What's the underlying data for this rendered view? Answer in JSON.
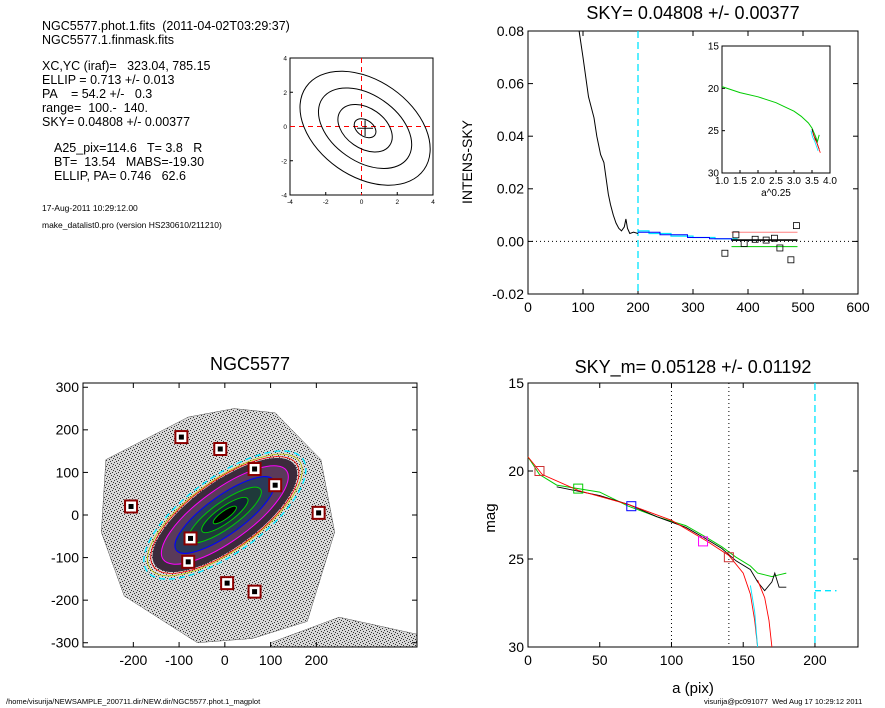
{
  "header": {
    "lines": [
      "NGC5577.phot.1.fits  (2011-04-02T03:29:37)",
      "NGC5577.1.finmask.fits"
    ],
    "params": [
      "XC,YC (iraf)=   323.04, 785.15",
      "ELLIP = 0.713 +/- 0.013",
      "PA    = 54.2 +/-   0.3",
      "range=  100.-  140.",
      "SKY= 0.04808 +/- 0.00377"
    ],
    "results": [
      "A25_pix=114.6   T= 3.8   R",
      "BT=  13.54   MABS=-19.30",
      "ELLIP, PA= 0.746   62.6"
    ],
    "date": "17-Aug-2011 10:29:12.00",
    "program": "make_datalist0.pro (version HS230610/211210)"
  },
  "footer": {
    "left": "/home/visurija/NEWSAMPLE_200711.dir/NEW.dir/NGC5577.phot.1_magplot",
    "right": "visurija@pc091077  Wed Aug 17 10:29:12 2011"
  },
  "colors": {
    "cyan": "#00e5ff",
    "red": "#ff0000",
    "green": "#00cc00",
    "blue": "#0000ff",
    "magenta": "#ff00ff",
    "dark_red": "#8b0000"
  },
  "chart_data": [
    {
      "type": "line",
      "name": "contour-plot",
      "xlim": [
        -4,
        4
      ],
      "ylim": [
        -4,
        4
      ],
      "x_ticks": [
        "-4",
        "-2",
        "0",
        "2",
        "4"
      ],
      "y_ticks": [
        "-4",
        "-2",
        "0",
        "2",
        "4"
      ]
    },
    {
      "type": "line",
      "name": "sky-profile",
      "title": "SKY= 0.04808 +/- 0.00377",
      "ylabel": "INTENS-SKY",
      "xlim": [
        0,
        600
      ],
      "ylim": [
        -0.02,
        0.08
      ],
      "x_ticks": [
        "0",
        "100",
        "200",
        "300",
        "400",
        "500",
        "600"
      ],
      "y_ticks": [
        "-0.02",
        "0.00",
        "0.02",
        "0.04",
        "0.06",
        "0.08"
      ],
      "profile": [
        [
          93,
          0.08
        ],
        [
          100,
          0.07
        ],
        [
          110,
          0.055
        ],
        [
          120,
          0.047
        ],
        [
          125,
          0.04
        ],
        [
          132,
          0.033
        ],
        [
          138,
          0.03
        ],
        [
          142,
          0.024
        ],
        [
          146,
          0.018
        ],
        [
          150,
          0.014
        ],
        [
          155,
          0.01
        ],
        [
          160,
          0.007
        ],
        [
          165,
          0.005
        ],
        [
          170,
          0.004
        ],
        [
          175,
          0.0055
        ],
        [
          178,
          0.0085
        ],
        [
          181,
          0.005
        ],
        [
          185,
          0.003
        ],
        [
          192,
          0.0035
        ],
        [
          200,
          0.003
        ]
      ],
      "cyan_line": [
        [
          200,
          0.004
        ],
        [
          220,
          0.004
        ],
        [
          220,
          0.003
        ],
        [
          260,
          0.003
        ],
        [
          260,
          0.002
        ],
        [
          300,
          0.002
        ],
        [
          300,
          0.0015
        ],
        [
          340,
          0.0015
        ],
        [
          340,
          0.001
        ],
        [
          380,
          0.001
        ],
        [
          380,
          0.0005
        ],
        [
          420,
          0.0005
        ]
      ],
      "blue_line": [
        [
          200,
          0.0035
        ],
        [
          240,
          0.0035
        ],
        [
          240,
          0.0025
        ],
        [
          290,
          0.0025
        ],
        [
          290,
          0.0015
        ],
        [
          330,
          0.0015
        ],
        [
          330,
          0.001
        ],
        [
          370,
          0.001
        ],
        [
          370,
          0.0005
        ],
        [
          410,
          0.0005
        ]
      ],
      "sky_segments": [
        {
          "color": "#ff8080",
          "x0": 370,
          "x1": 490,
          "y": 0.0035
        },
        {
          "color": "#000000",
          "x0": 370,
          "x1": 490,
          "y": 0.0005
        },
        {
          "color": "#00cc00",
          "x0": 370,
          "x1": 490,
          "y": -0.002
        }
      ],
      "squares": [
        [
          358,
          -0.0045
        ],
        [
          378,
          0.0025
        ],
        [
          393,
          -0.0008
        ],
        [
          413,
          0.0008
        ],
        [
          433,
          0.0005
        ],
        [
          448,
          0.0012
        ],
        [
          458,
          -0.0025
        ],
        [
          478,
          -0.007
        ],
        [
          488,
          0.006
        ]
      ],
      "vline_x": 200,
      "inset": {
        "xlabel": "a^0.25",
        "xlim": [
          1.0,
          4.0
        ],
        "ylim": [
          15,
          30
        ],
        "x_ticks": [
          "1.0",
          "1.5",
          "2.0",
          "2.5",
          "3.0",
          "3.5",
          "4.0"
        ],
        "y_ticks": [
          "15",
          "20",
          "25",
          "30"
        ],
        "green": [
          [
            1.0,
            19.8
          ],
          [
            1.5,
            20.5
          ],
          [
            2.0,
            21.0
          ],
          [
            2.5,
            21.7
          ],
          [
            2.8,
            22.3
          ],
          [
            3.0,
            22.7
          ],
          [
            3.2,
            23.3
          ],
          [
            3.4,
            24.1
          ],
          [
            3.5,
            24.7
          ],
          [
            3.6,
            25.7
          ],
          [
            3.65,
            26.3
          ],
          [
            3.7,
            25.5
          ]
        ],
        "tail": [
          [
            3.5,
            24.8
          ],
          [
            3.55,
            25.6
          ],
          [
            3.6,
            26.0
          ],
          [
            3.65,
            26.6
          ],
          [
            3.7,
            27.2
          ]
        ]
      }
    },
    {
      "type": "scatter",
      "name": "galaxy-image",
      "title": "NGC5577",
      "xlim": [
        -310,
        420
      ],
      "ylim": [
        -310,
        310
      ],
      "x_ticks": [
        "-200",
        "-100",
        "0",
        "100",
        "200"
      ],
      "y_ticks": [
        "-300",
        "-200",
        "-100",
        "0",
        "100",
        "200",
        "300"
      ],
      "mask_squares": [
        [
          -95,
          183
        ],
        [
          -10,
          155
        ],
        [
          65,
          108
        ],
        [
          110,
          70
        ],
        [
          -205,
          20
        ],
        [
          205,
          5
        ],
        [
          -75,
          -55
        ],
        [
          -80,
          -110
        ],
        [
          5,
          -160
        ],
        [
          65,
          -180
        ]
      ],
      "ellipse_center": [
        0,
        0
      ],
      "ellipse_pa_deg": 54.2
    },
    {
      "type": "line",
      "name": "surface-brightness",
      "title": "SKY_m=  0.05128 +/- 0.01192",
      "xlabel": "a (pix)",
      "ylabel": "mag",
      "xlim": [
        0,
        230
      ],
      "ylim": [
        15,
        30
      ],
      "x_ticks": [
        "0",
        "50",
        "100",
        "150",
        "200"
      ],
      "y_ticks": [
        "15",
        "20",
        "25",
        "30"
      ],
      "vlines_dotted": [
        100,
        140
      ],
      "vline_cyan": 200,
      "sky_level_cyan": [
        [
          200,
          26.8
        ],
        [
          215,
          26.8
        ]
      ],
      "green": [
        [
          0,
          19.2
        ],
        [
          8,
          20.2
        ],
        [
          20,
          20.8
        ],
        [
          35,
          21.0
        ],
        [
          50,
          21.2
        ],
        [
          70,
          22.0
        ],
        [
          90,
          22.6
        ],
        [
          110,
          23.1
        ],
        [
          125,
          23.8
        ],
        [
          135,
          24.3
        ],
        [
          145,
          24.9
        ],
        [
          155,
          25.4
        ],
        [
          160,
          25.8
        ],
        [
          165,
          25.9
        ],
        [
          170,
          26.0
        ],
        [
          175,
          25.9
        ],
        [
          180,
          25.8
        ]
      ],
      "black": [
        [
          20,
          20.9
        ],
        [
          50,
          21.4
        ],
        [
          70,
          21.9
        ],
        [
          90,
          22.6
        ],
        [
          110,
          23.2
        ],
        [
          125,
          23.9
        ],
        [
          135,
          24.4
        ],
        [
          145,
          25.1
        ],
        [
          155,
          25.6
        ],
        [
          160,
          26.3
        ],
        [
          165,
          26.8
        ],
        [
          170,
          26.3
        ],
        [
          172,
          25.8
        ],
        [
          175,
          26.6
        ],
        [
          180,
          26.6
        ]
      ],
      "red": [
        [
          0,
          19.2
        ],
        [
          10,
          20.2
        ],
        [
          35,
          21.1
        ],
        [
          70,
          21.9
        ],
        [
          100,
          22.8
        ],
        [
          125,
          24.0
        ],
        [
          140,
          24.8
        ],
        [
          150,
          25.8
        ],
        [
          155,
          27.0
        ],
        [
          158,
          28.5
        ],
        [
          160,
          30.0
        ]
      ],
      "red2": [
        [
          160,
          26.2
        ],
        [
          165,
          27.2
        ],
        [
          168,
          28.5
        ],
        [
          170,
          30.0
        ]
      ],
      "cyan": [
        [
          155,
          26.5
        ],
        [
          158,
          28.0
        ],
        [
          160,
          30.0
        ]
      ],
      "squares": [
        {
          "x": 8,
          "y": 20.0,
          "color": "#cc3333"
        },
        {
          "x": 35,
          "y": 21.0,
          "color": "#00cc00"
        },
        {
          "x": 72,
          "y": 22.0,
          "color": "#0000ff"
        },
        {
          "x": 122,
          "y": 24.0,
          "color": "#ff00ff"
        },
        {
          "x": 140,
          "y": 24.9,
          "color": "#cc3333"
        }
      ]
    }
  ]
}
